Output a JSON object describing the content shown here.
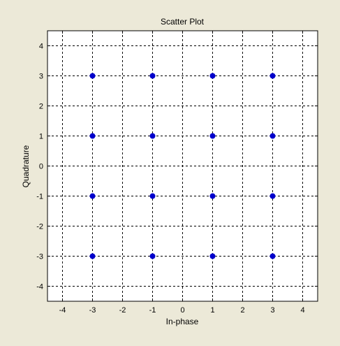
{
  "colors": {
    "figure_background": "#ece9d8",
    "plot_background": "#ffffff",
    "marker": "#0000cc",
    "grid": "#000000"
  },
  "chart_data": {
    "type": "scatter",
    "title": "Scatter Plot",
    "xlabel": "In-phase",
    "ylabel": "Quadrature",
    "xlim": [
      -4.5,
      4.5
    ],
    "ylim": [
      -4.5,
      4.5
    ],
    "xticks": [
      -4,
      -3,
      -2,
      -1,
      0,
      1,
      2,
      3,
      4
    ],
    "yticks": [
      -4,
      -3,
      -2,
      -1,
      0,
      1,
      2,
      3,
      4
    ],
    "xtick_labels": [
      "-4",
      "-3",
      "-2",
      "-1",
      "0",
      "1",
      "2",
      "3",
      "4"
    ],
    "ytick_labels": [
      "-4",
      "-3",
      "-2",
      "-1",
      "0",
      "1",
      "2",
      "3",
      "4"
    ],
    "grid": true,
    "grid_style": "dashed",
    "marker": "filled-circle",
    "points": [
      [
        -3,
        3
      ],
      [
        -1,
        3
      ],
      [
        1,
        3
      ],
      [
        3,
        3
      ],
      [
        -3,
        1
      ],
      [
        -1,
        1
      ],
      [
        1,
        1
      ],
      [
        3,
        1
      ],
      [
        -3,
        -1
      ],
      [
        -1,
        -1
      ],
      [
        1,
        -1
      ],
      [
        3,
        -1
      ],
      [
        -3,
        -3
      ],
      [
        -1,
        -3
      ],
      [
        1,
        -3
      ],
      [
        3,
        -3
      ]
    ]
  }
}
